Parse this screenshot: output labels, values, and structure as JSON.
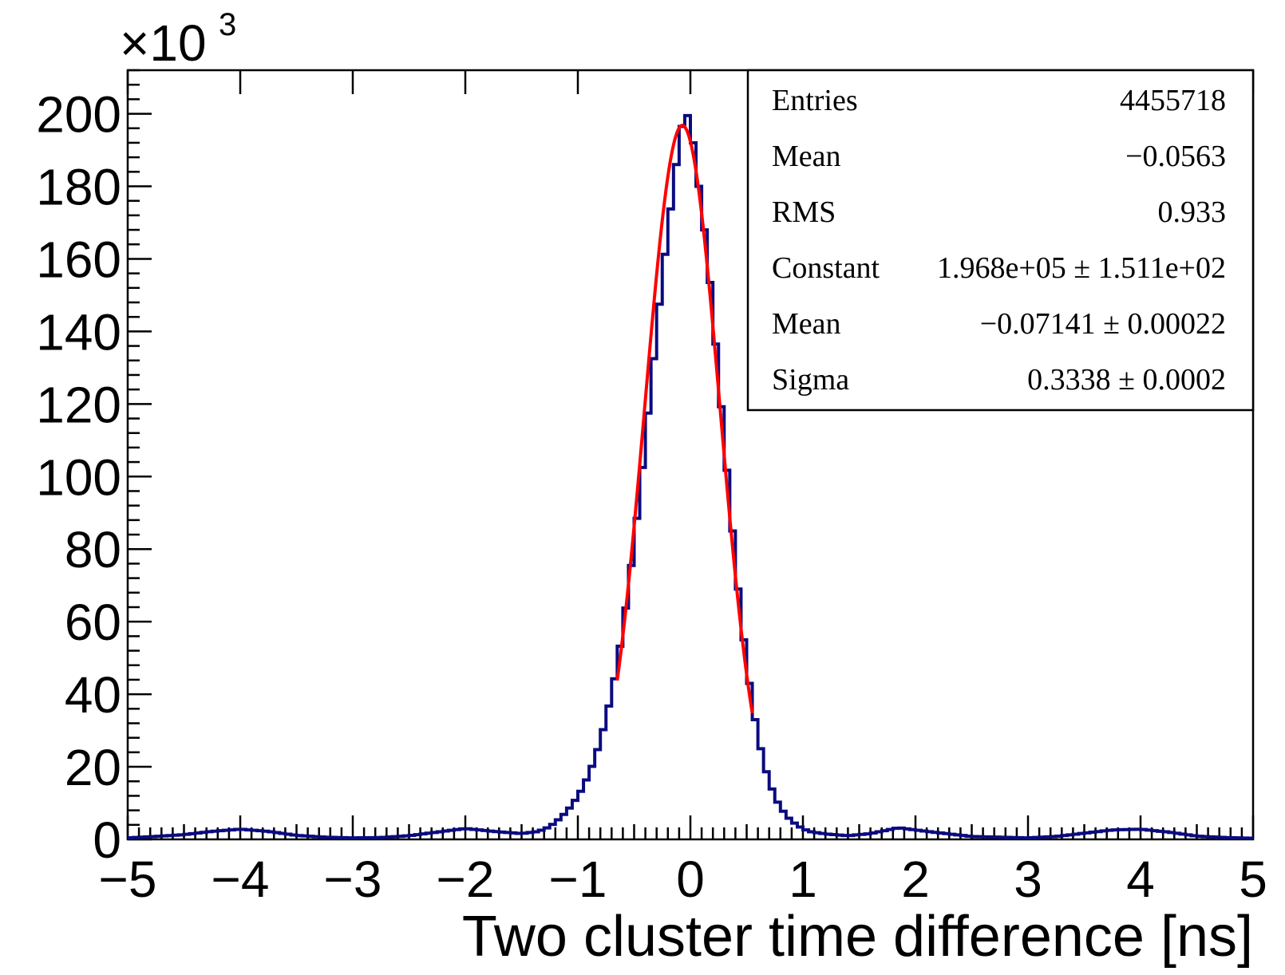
{
  "chart_data": {
    "type": "histogram",
    "title": "",
    "xlabel": "Two cluster time difference [ns]",
    "ylabel": "",
    "y_multiplier_label": "×10",
    "y_multiplier_exponent": "3",
    "xlim": [
      -5,
      5
    ],
    "ylim": [
      0,
      212
    ],
    "grid": false,
    "x_ticks": [
      -5,
      -4,
      -3,
      -2,
      -1,
      0,
      1,
      2,
      3,
      4,
      5
    ],
    "x_tick_labels": [
      "−5",
      "−4",
      "−3",
      "−2",
      "−1",
      "0",
      "1",
      "2",
      "3",
      "4",
      "5"
    ],
    "y_ticks": [
      0,
      20,
      40,
      60,
      80,
      100,
      120,
      140,
      160,
      180,
      200
    ],
    "y_tick_labels": [
      "0",
      "20",
      "40",
      "60",
      "80",
      "100",
      "120",
      "140",
      "160",
      "180",
      "200"
    ],
    "bin_width": 0.05,
    "histogram_color": "#0a0a80",
    "fit_color": "#ff0000",
    "histogram_points": [
      [
        -5.0,
        0.4
      ],
      [
        -4.75,
        0.8
      ],
      [
        -4.5,
        1.3
      ],
      [
        -4.25,
        2.2
      ],
      [
        -4.0,
        2.8
      ],
      [
        -3.75,
        2.2
      ],
      [
        -3.5,
        1.1
      ],
      [
        -3.25,
        0.6
      ],
      [
        -3.0,
        0.4
      ],
      [
        -2.75,
        0.5
      ],
      [
        -2.5,
        1.0
      ],
      [
        -2.25,
        2.0
      ],
      [
        -2.0,
        3.0
      ],
      [
        -1.75,
        2.2
      ],
      [
        -1.5,
        1.6
      ],
      [
        -1.35,
        2.2
      ],
      [
        -1.25,
        3.5
      ],
      [
        -1.15,
        6.0
      ],
      [
        -1.05,
        9.5
      ],
      [
        -0.95,
        14.5
      ],
      [
        -0.85,
        22.0
      ],
      [
        -0.75,
        33.0
      ],
      [
        -0.65,
        48.0
      ],
      [
        -0.55,
        69.0
      ],
      [
        -0.45,
        95.0
      ],
      [
        -0.35,
        125.0
      ],
      [
        -0.25,
        155.0
      ],
      [
        -0.15,
        180.0
      ],
      [
        -0.1,
        192.0
      ],
      [
        -0.05,
        201.0
      ],
      [
        0.0,
        198.0
      ],
      [
        0.05,
        186.0
      ],
      [
        0.15,
        162.0
      ],
      [
        0.25,
        128.0
      ],
      [
        0.35,
        93.0
      ],
      [
        0.45,
        61.0
      ],
      [
        0.55,
        37.0
      ],
      [
        0.65,
        21.0
      ],
      [
        0.75,
        11.5
      ],
      [
        0.85,
        6.5
      ],
      [
        0.95,
        3.8
      ],
      [
        1.05,
        2.2
      ],
      [
        1.2,
        1.5
      ],
      [
        1.4,
        1.0
      ],
      [
        1.6,
        1.6
      ],
      [
        1.85,
        3.2
      ],
      [
        2.1,
        2.2
      ],
      [
        2.5,
        0.8
      ],
      [
        3.0,
        0.4
      ],
      [
        3.25,
        0.8
      ],
      [
        3.5,
        1.7
      ],
      [
        3.75,
        2.6
      ],
      [
        4.0,
        2.8
      ],
      [
        4.25,
        2.0
      ],
      [
        4.5,
        0.9
      ],
      [
        4.75,
        0.5
      ],
      [
        5.0,
        0.3
      ]
    ],
    "fit": {
      "function": "gaus",
      "constant": 196.8,
      "mean": -0.07141,
      "sigma": 0.3338,
      "x_range": [
        -0.65,
        0.55
      ]
    }
  },
  "stats_box": {
    "rows": [
      {
        "label": "Entries",
        "value": "4455718"
      },
      {
        "label": "Mean",
        "value": "−0.0563"
      },
      {
        "label": "RMS",
        "value": "0.933"
      },
      {
        "label": "Constant",
        "value": "1.968e+05 ± 1.511e+02"
      },
      {
        "label": "Mean",
        "value": "−0.07141 ± 0.00022"
      },
      {
        "label": "Sigma",
        "value": "0.3338 ± 0.0002"
      }
    ]
  }
}
